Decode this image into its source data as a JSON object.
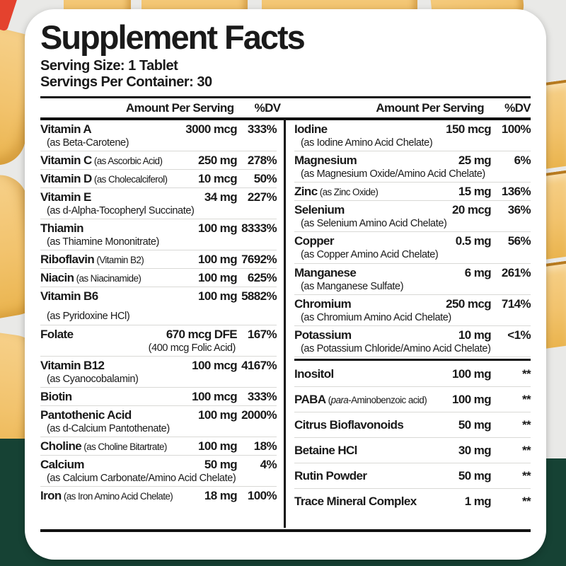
{
  "colors": {
    "panel_bg": "#ffffff",
    "text": "#1a1a1a",
    "green_band": "#164234",
    "tablet_yellow": "#f2c36d",
    "red_accent": "#e4422e",
    "background_gray": "#e9e9e7"
  },
  "panel": {
    "title": "Supplement Facts",
    "serving_size": "Serving Size: 1 Tablet",
    "servings_per_container": "Servings Per Container: 30",
    "column_header": {
      "amount": "Amount Per Serving",
      "dv": "%DV"
    }
  },
  "columns": {
    "left": {
      "rows": [
        {
          "name": "Vitamin A",
          "note_below": "(as Beta-Carotene)",
          "amount": "3000 mcg",
          "dv": "333%"
        },
        {
          "name": "Vitamin C",
          "note_inline": "(as Ascorbic Acid)",
          "amount": "250 mg",
          "dv": "278%"
        },
        {
          "name": "Vitamin D",
          "note_inline": "(as Cholecalciferol)",
          "amount": "10 mcg",
          "dv": "50%"
        },
        {
          "name": "Vitamin E",
          "note_below": "(as d-Alpha-Tocopheryl Succinate)",
          "amount": "34 mg",
          "dv": "227%"
        },
        {
          "name": "Thiamin",
          "note_below": "(as Thiamine Mononitrate)",
          "amount": "100 mg",
          "dv": "8333%"
        },
        {
          "name": "Riboflavin",
          "note_inline": "(Vitamin B2)",
          "amount": "100 mg",
          "dv": "7692%"
        },
        {
          "name": "Niacin",
          "note_inline": "(as Niacinamide)",
          "amount": "100 mg",
          "dv": "625%"
        },
        {
          "name": "Vitamin B6",
          "note_below": "(as Pyridoxine HCl)",
          "amount": "100 mg",
          "dv": "5882%",
          "extra_gap": true
        },
        {
          "name": "Folate",
          "amount": "670 mcg DFE",
          "dv": "167%",
          "sub_amount": "(400 mcg Folic Acid)"
        },
        {
          "name": "Vitamin B12",
          "note_below": "(as Cyanocobalamin)",
          "amount": "100 mcg",
          "dv": "4167%"
        },
        {
          "name": "Biotin",
          "amount": "100 mcg",
          "dv": "333%"
        },
        {
          "name": "Pantothenic Acid",
          "note_below": "(as d-Calcium Pantothenate)",
          "amount": "100 mg",
          "dv": "2000%"
        },
        {
          "name": "Choline",
          "note_inline": "(as Choline Bitartrate)",
          "amount": "100 mg",
          "dv": "18%"
        },
        {
          "name": "Calcium",
          "note_below": "(as Calcium Carbonate/Amino Acid Chelate)",
          "amount": "50 mg",
          "dv": "4%"
        },
        {
          "name": "Iron",
          "note_inline": "(as Iron Amino Acid Chelate)",
          "amount": "18 mg",
          "dv": "100%"
        }
      ]
    },
    "right": {
      "rows": [
        {
          "name": "Iodine",
          "note_below": "(as Iodine Amino Acid Chelate)",
          "amount": "150 mcg",
          "dv": "100%"
        },
        {
          "name": "Magnesium",
          "note_below": "(as Magnesium Oxide/Amino Acid Chelate)",
          "amount": "25 mg",
          "dv": "6%"
        },
        {
          "name": "Zinc",
          "note_inline": "(as Zinc Oxide)",
          "amount": "15 mg",
          "dv": "136%"
        },
        {
          "name": "Selenium",
          "note_below": "(as Selenium Amino Acid Chelate)",
          "amount": "20 mcg",
          "dv": "36%"
        },
        {
          "name": "Copper",
          "note_below": "(as Copper Amino Acid Chelate)",
          "amount": "0.5 mg",
          "dv": "56%"
        },
        {
          "name": "Manganese",
          "note_below": "(as Manganese Sulfate)",
          "amount": "6 mg",
          "dv": "261%"
        },
        {
          "name": "Chromium",
          "note_below": "(as Chromium Amino Acid Chelate)",
          "amount": "250 mcg",
          "dv": "714%"
        },
        {
          "name": "Potassium",
          "note_below": "(as Potassium Chloride/Amino Acid Chelate)",
          "amount": "10 mg",
          "dv": "<1%",
          "divider_after": true
        },
        {
          "name": "Inositol",
          "amount": "100 mg",
          "dv": "**",
          "section2": true
        },
        {
          "name": "PABA",
          "note_inline": "(para-Aminobenzoic acid)",
          "note_italic": "para",
          "amount": "100 mg",
          "dv": "**",
          "section2": true
        },
        {
          "name": "Citrus Bioflavonoids",
          "amount": "50 mg",
          "dv": "**",
          "section2": true
        },
        {
          "name": "Betaine HCl",
          "amount": "30 mg",
          "dv": "**",
          "section2": true
        },
        {
          "name": "Rutin Powder",
          "amount": "50 mg",
          "dv": "**",
          "section2": true
        },
        {
          "name": "Trace Mineral Complex",
          "amount": "1 mg",
          "dv": "**",
          "section2": true
        }
      ]
    }
  }
}
